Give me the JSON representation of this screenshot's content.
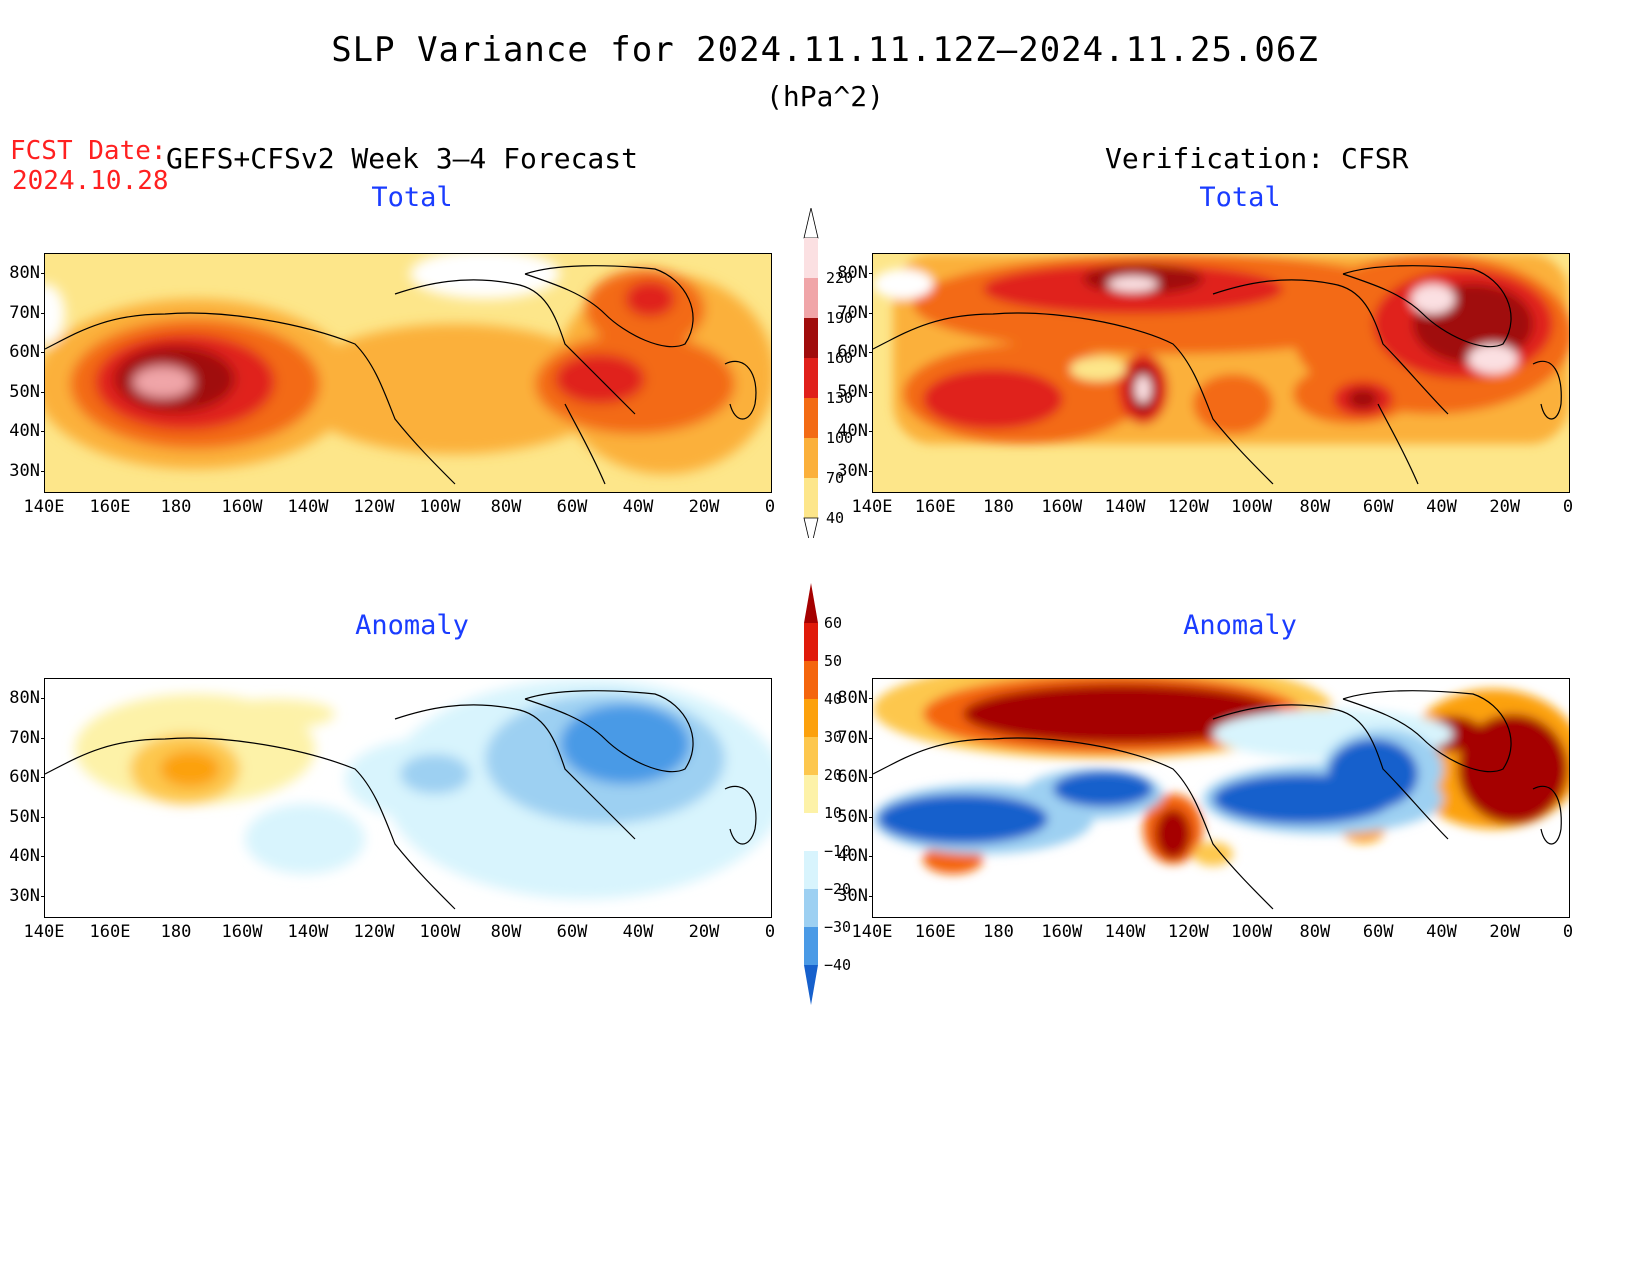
{
  "title": "SLP Variance for 2024.11.11.12Z–2024.11.25.06Z",
  "units": "(hPa^2)",
  "fcst_label": "FCST Date:",
  "fcst_date": "2024.10.28",
  "left_header": "GEFS+CFSv2 Week 3–4 Forecast",
  "right_header": "Verification: CFSR",
  "panels": {
    "forecast_total": {
      "title": "Total"
    },
    "verification_total": {
      "title": "Total"
    },
    "forecast_anomaly": {
      "title": "Anomaly"
    },
    "verification_anomaly": {
      "title": "Anomaly"
    }
  },
  "axes": {
    "lat_ticks": [
      "80N",
      "70N",
      "60N",
      "50N",
      "40N",
      "30N"
    ],
    "lon_ticks": [
      "140E",
      "160E",
      "180",
      "160W",
      "140W",
      "120W",
      "100W",
      "80W",
      "60W",
      "40W",
      "20W",
      "0"
    ]
  },
  "colorbar_total": {
    "levels": [
      "40",
      "70",
      "100",
      "130",
      "160",
      "190",
      "220"
    ],
    "colors": [
      "#fde68a",
      "#fbb03b",
      "#f36b14",
      "#e0201b",
      "#a00c0c",
      "#f0a5a8",
      "#fbe0e2"
    ]
  },
  "colorbar_anomaly": {
    "levels": [
      "60",
      "50",
      "40",
      "30",
      "20",
      "10",
      "−10",
      "−20",
      "−30",
      "−40"
    ],
    "colors": [
      "#a50000",
      "#e01a0a",
      "#f4650d",
      "#fca10c",
      "#fdc74d",
      "#fdf2a8",
      "#ffffff",
      "#d8f4fd",
      "#9dd0f2",
      "#4a9ae6",
      "#1660cc"
    ]
  }
}
